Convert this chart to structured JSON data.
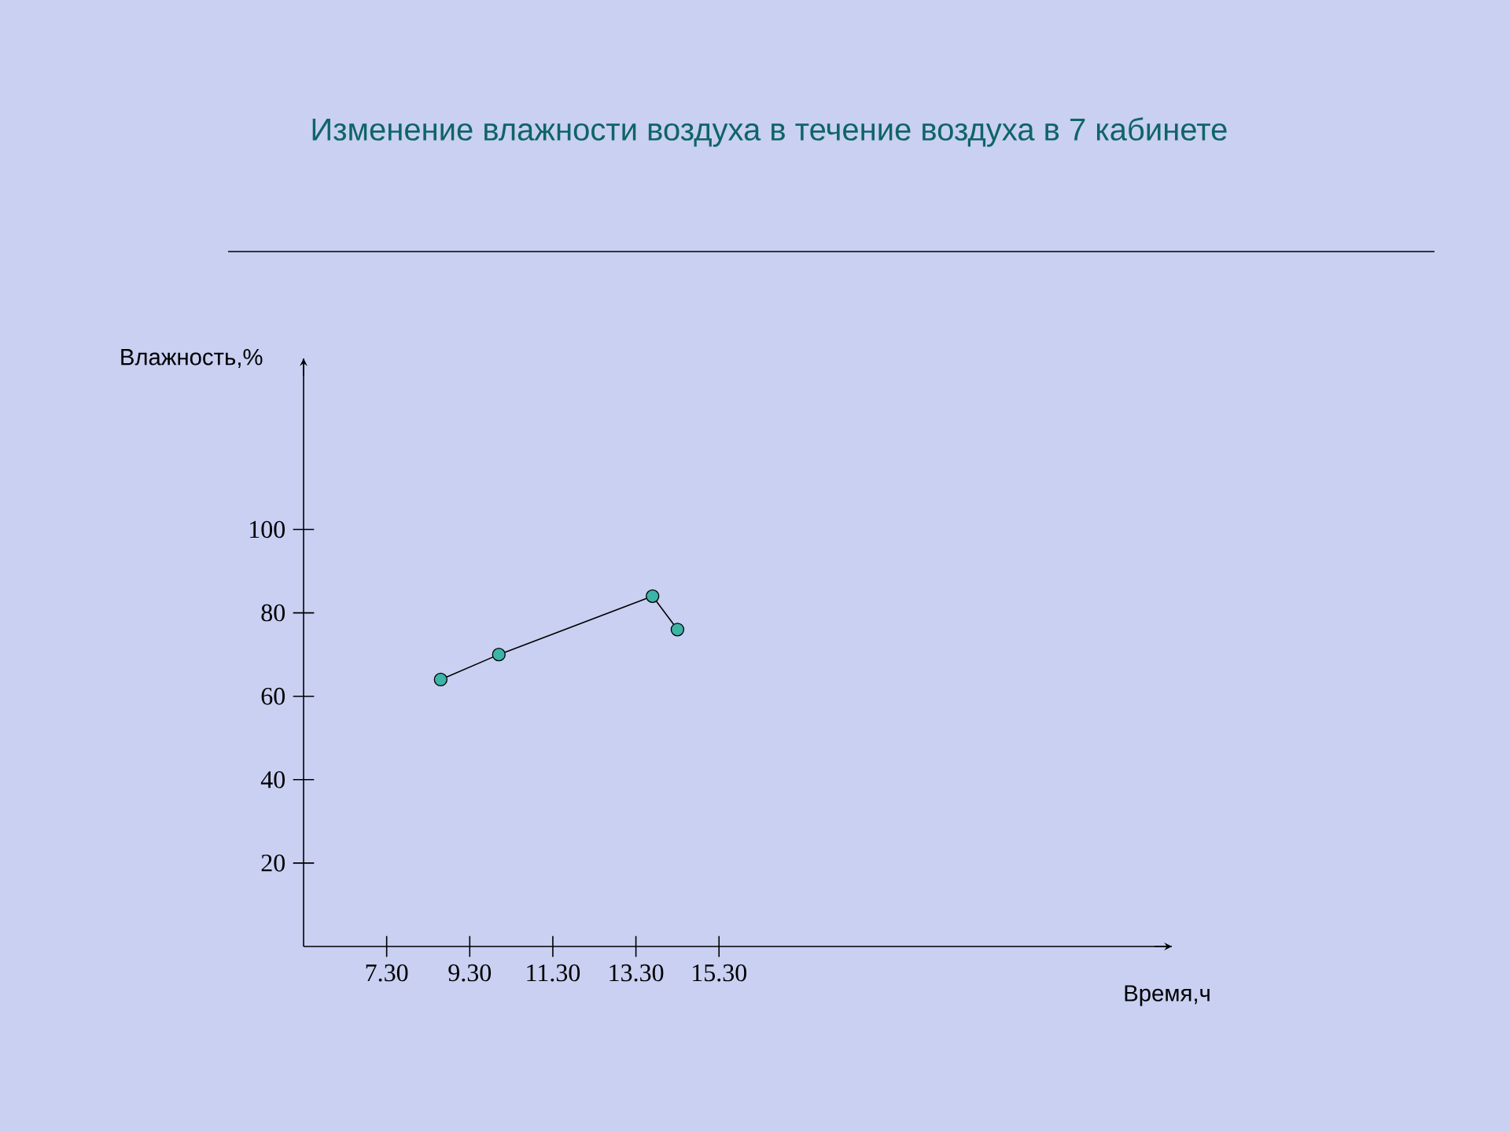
{
  "chart_data": {
    "type": "line",
    "title": "Изменение влажности воздуха в течение воздуха в 7 кабинете",
    "xlabel": "Время,ч",
    "ylabel": "Влажность,%",
    "x": [
      8.6,
      10.0,
      13.7,
      14.3
    ],
    "values": [
      64,
      70,
      84,
      76
    ],
    "color": "#000000",
    "marker": "circle",
    "line_style": "solid",
    "xlim": [
      5.3,
      26.2
    ],
    "ylim": [
      0,
      141
    ],
    "xticks": [
      {
        "value": 7.3,
        "label": "7.30"
      },
      {
        "value": 9.3,
        "label": "9.30"
      },
      {
        "value": 11.3,
        "label": "11.30"
      },
      {
        "value": 13.3,
        "label": "13.30"
      },
      {
        "value": 15.3,
        "label": "15.30"
      }
    ],
    "yticks": [
      20,
      40,
      60,
      80,
      100
    ]
  }
}
